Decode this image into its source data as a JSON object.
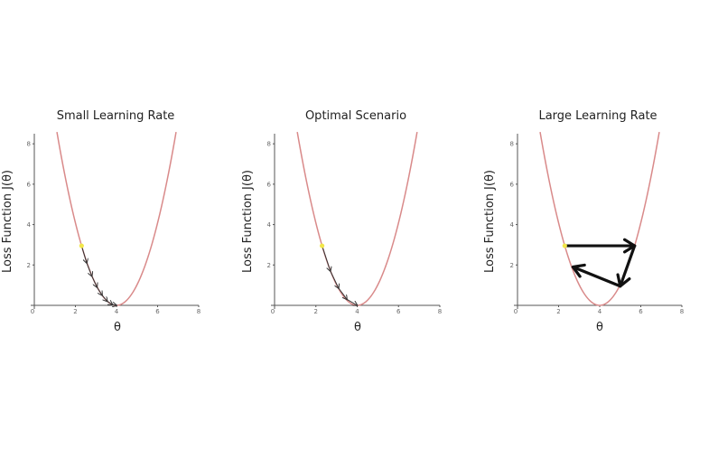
{
  "chart_data": [
    {
      "type": "line",
      "title": "Small Learning Rate",
      "xlabel": "θ",
      "ylabel": "Loss Function J(θ)",
      "xlim": [
        0,
        8
      ],
      "ylim": [
        0,
        8.5
      ],
      "xticks": [
        "0",
        "2",
        "4",
        "6",
        "8"
      ],
      "yticks": [
        "0",
        "2",
        "4",
        "6",
        "8"
      ],
      "curve": {
        "vertex_x": 4,
        "vertex_y": 0,
        "x": [
          1.1,
          6.9
        ]
      },
      "start_point": {
        "x": 2.3,
        "y": 2.95
      },
      "steps": [
        {
          "x": 2.3,
          "y": 2.95
        },
        {
          "x": 2.55,
          "y": 2.1
        },
        {
          "x": 2.8,
          "y": 1.45
        },
        {
          "x": 3.05,
          "y": 0.9
        },
        {
          "x": 3.3,
          "y": 0.5
        },
        {
          "x": 3.55,
          "y": 0.2
        },
        {
          "x": 3.8,
          "y": 0.04
        },
        {
          "x": 4.0,
          "y": 0.0
        }
      ],
      "arrow_style": "small"
    },
    {
      "type": "line",
      "title": "Optimal Scenario",
      "xlabel": "θ",
      "ylabel": "Loss Function J(θ)",
      "xlim": [
        0,
        8
      ],
      "ylim": [
        0,
        8.5
      ],
      "xticks": [
        "0",
        "2",
        "4",
        "6",
        "8"
      ],
      "yticks": [
        "0",
        "2",
        "4",
        "6",
        "8"
      ],
      "curve": {
        "vertex_x": 4,
        "vertex_y": 0,
        "x": [
          1.1,
          6.9
        ]
      },
      "start_point": {
        "x": 2.3,
        "y": 2.95
      },
      "steps": [
        {
          "x": 2.3,
          "y": 2.95
        },
        {
          "x": 2.7,
          "y": 1.7
        },
        {
          "x": 3.1,
          "y": 0.85
        },
        {
          "x": 3.5,
          "y": 0.3
        },
        {
          "x": 4.0,
          "y": 0.0
        }
      ],
      "arrow_style": "small"
    },
    {
      "type": "line",
      "title": "Large Learning Rate",
      "xlabel": "θ",
      "ylabel": "Loss Function J(θ)",
      "xlim": [
        0,
        8
      ],
      "ylim": [
        0,
        8.5
      ],
      "xticks": [
        "0",
        "2",
        "4",
        "6",
        "8"
      ],
      "yticks": [
        "0",
        "2",
        "4",
        "6",
        "8"
      ],
      "curve": {
        "vertex_x": 4,
        "vertex_y": 0,
        "x": [
          1.1,
          6.9
        ]
      },
      "start_point": {
        "x": 2.3,
        "y": 2.95
      },
      "steps": [
        {
          "x": 2.3,
          "y": 2.95
        },
        {
          "x": 5.7,
          "y": 2.95
        },
        {
          "x": 5.0,
          "y": 0.95
        },
        {
          "x": 2.7,
          "y": 1.9
        }
      ],
      "arrow_style": "large"
    }
  ]
}
